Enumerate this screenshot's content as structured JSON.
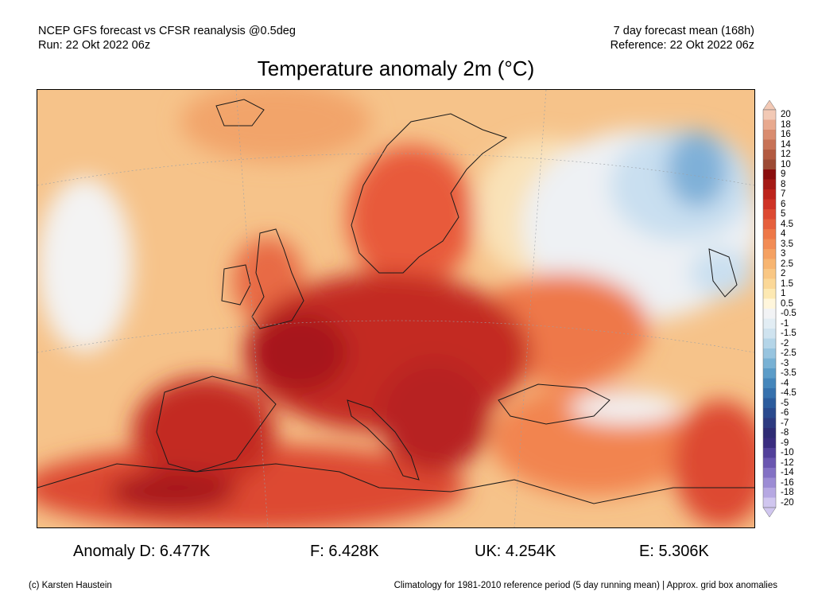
{
  "header": {
    "left_line1": "NCEP GFS forecast vs CFSR reanalysis @0.5deg",
    "left_line2": "Run: 22 Okt 2022 06z",
    "right_line1": "7 day forecast mean (168h)",
    "right_line2": "Reference: 22 Okt 2022 06z"
  },
  "title": "Temperature anomaly 2m (°C)",
  "colorbar": {
    "labels": [
      "20",
      "18",
      "16",
      "14",
      "12",
      "10",
      "9",
      "8",
      "7",
      "6",
      "5",
      "4.5",
      "4",
      "3.5",
      "3",
      "2.5",
      "2",
      "1.5",
      "1",
      "0.5",
      "-0.5",
      "-1",
      "-1.5",
      "-2",
      "-2.5",
      "-3",
      "-3.5",
      "-4",
      "-4.5",
      "-5",
      "-6",
      "-7",
      "-8",
      "-9",
      "-10",
      "-12",
      "-14",
      "-16",
      "-18",
      "-20"
    ],
    "colors": [
      "#f2c9b5",
      "#e8a98e",
      "#d98c6f",
      "#c77256",
      "#b25a40",
      "#9c4a34",
      "#8a0d0d",
      "#a51a16",
      "#bd241c",
      "#cf3326",
      "#dd4a32",
      "#e6603d",
      "#ee7848",
      "#f28c55",
      "#f5a162",
      "#f7b571",
      "#f9c784",
      "#fbd898",
      "#fde9b3",
      "#fff6dc",
      "#f2f3f5",
      "#e2edf4",
      "#cfe3ef",
      "#b4d5e8",
      "#97c4df",
      "#78b1d4",
      "#5b9cc8",
      "#4586bb",
      "#3671ad",
      "#2c5c9d",
      "#2a4a8e",
      "#2d3a80",
      "#2f2c75",
      "#3a2d80",
      "#52409a",
      "#6a56b0",
      "#8371c4",
      "#9c8cd4",
      "#b6a8e2",
      "#d0c6ef"
    ]
  },
  "map": {
    "palette": {
      "ocean": "#f6c38a",
      "warm_land": "#e85a3a",
      "hot_core": "#c32a20",
      "very_hot": "#a7181a",
      "mild": "#f9d89d",
      "neutral": "#f3f3f3",
      "cool": "#c9dff0",
      "cold": "#7fb0d8",
      "coast": "#1a1a1a"
    }
  },
  "stats": {
    "d": "Anomaly D: 6.477K",
    "f": "F: 6.428K",
    "uk": "UK: 4.254K",
    "e": "E: 5.306K"
  },
  "footer": {
    "left": "(c) Karsten Haustein",
    "right": "Climatology for 1981-2010 reference period (5 day running mean) | Approx. grid box anomalies"
  }
}
